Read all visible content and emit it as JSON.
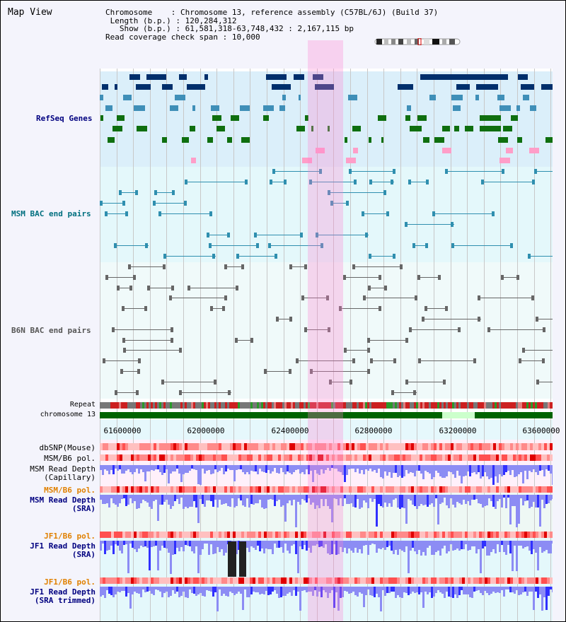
{
  "window": {
    "title": "Map View"
  },
  "info": {
    "chromosome_key": "Chromosome",
    "chromosome_value": "Chromosome 13, reference assembly (C57BL/6J) (Build 37)",
    "length_key": "Length (b.p.)",
    "length_value": "120,284,312",
    "show_key": "Show (b.p.)",
    "show_value": "61,581,318-63,748,432 : 2,167,115 bp",
    "coverage_key": "Read coverage check span",
    "coverage_value": "10,000"
  },
  "tracks": {
    "refseq": {
      "label": "RefSeq Genes",
      "color": "#000080"
    },
    "msm_bac": {
      "label": "MSM BAC end pairs",
      "color": "#006f7f"
    },
    "b6n_bac": {
      "label": "B6N BAC end pairs",
      "color": "#555555"
    },
    "repeat": {
      "label": "Repeat"
    },
    "chromosome": {
      "label": "chromosome 13"
    },
    "dbsnp": {
      "label": "dbSNP(Mouse)"
    },
    "msm_b6_pol_1": {
      "label": "MSM/B6 pol."
    },
    "msm_read_depth_cap": {
      "label_line1": "MSM Read Depth",
      "label_line2": "(Capillary)"
    },
    "msm_b6_pol_2": {
      "label": "MSM/B6 pol.",
      "color": "#e08000"
    },
    "msm_read_depth_sra": {
      "label_line1": "MSM Read Depth",
      "label_line2": "(SRA)",
      "color": "#000080"
    },
    "jf1_b6_pol_1": {
      "label": "JF1/B6 pol.",
      "color": "#e08000"
    },
    "jf1_read_depth_sra": {
      "label_line1": "JF1 Read Depth",
      "label_line2": "(SRA)",
      "color": "#000080"
    },
    "jf1_b6_pol_2": {
      "label": "JF1/B6 pol.",
      "color": "#e08000"
    },
    "jf1_read_depth_trim": {
      "label_line1": "JF1 Read Depth",
      "label_line2": "(SRA trimmed)",
      "color": "#000080"
    }
  },
  "axis": {
    "ticks": [
      "61600000",
      "62000000",
      "62400000",
      "62800000",
      "63200000",
      "63600000"
    ]
  },
  "colors": {
    "refseq_bg": "#dbeffa",
    "gene_dark": "#002f6c",
    "gene_mid": "#3f8fb8",
    "gene_green": "#0f6f0f",
    "gene_pink": "#ff9ec8",
    "highlight": "#ff80d2",
    "chromosome_bar": "#006400",
    "chromosome_gap": "#ccffcc",
    "depth_blue": "#3030ff",
    "depth_light": "#8c8cf4",
    "pol_red": "#ff4040"
  }
}
